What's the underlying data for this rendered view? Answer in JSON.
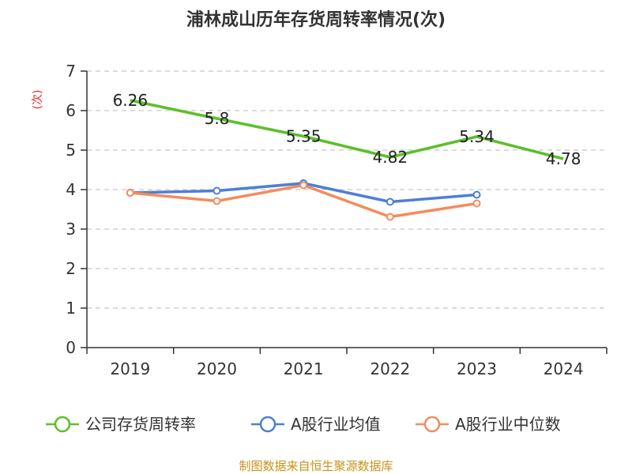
{
  "chart_data": {
    "type": "line",
    "title": "浦林成山历年存货周转率情况(次)",
    "ylabel": "(次)",
    "xlabel": "",
    "ylim": [
      0,
      7
    ],
    "yticks": [
      "0",
      "1",
      "2",
      "3",
      "4",
      "5",
      "6",
      "7"
    ],
    "categories": [
      "2019",
      "2020",
      "2021",
      "2022",
      "2023",
      "2024"
    ],
    "grid": true,
    "legend_position": "bottom",
    "series": [
      {
        "name": "公司存货周转率",
        "color": "#5cbf2a",
        "values": [
          6.26,
          5.8,
          5.35,
          4.82,
          5.34,
          4.78
        ],
        "labels": [
          "6.26",
          "5.8",
          "5.35",
          "4.82",
          "5.34",
          "4.78"
        ],
        "markers": false
      },
      {
        "name": "A股行业均值",
        "color": "#4e7fd6",
        "values": [
          3.92,
          3.97,
          4.16,
          3.69,
          3.87,
          null
        ],
        "markers": true
      },
      {
        "name": "A股行业中位数",
        "color": "#f48c5c",
        "values": [
          3.92,
          3.71,
          4.11,
          3.31,
          3.65,
          null
        ],
        "markers": true
      }
    ]
  },
  "source": "制图数据来自恒生聚源数据库"
}
